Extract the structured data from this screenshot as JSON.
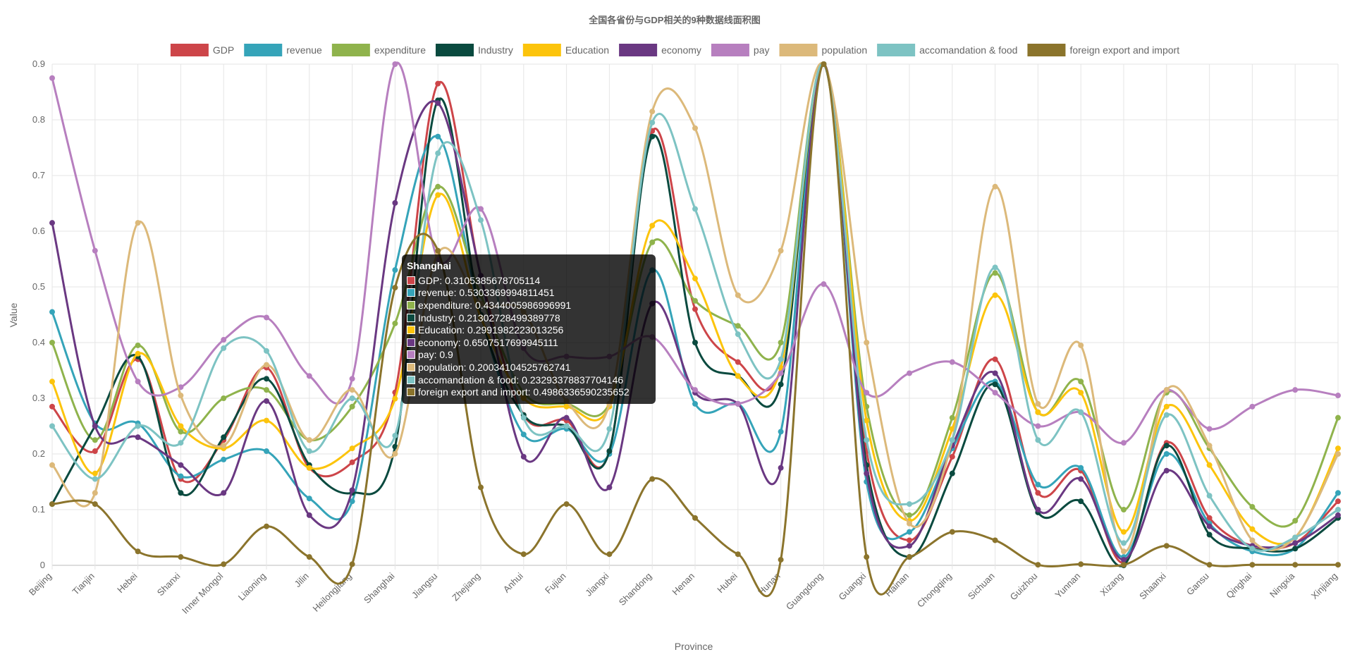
{
  "chart_data": {
    "type": "line",
    "title": "全国各省份与GDP相关的9种数据线面积图",
    "xlabel": "Province",
    "ylabel": "Value",
    "ylim": [
      0,
      0.9
    ],
    "yticks": [
      0,
      0.1,
      0.2,
      0.3,
      0.4,
      0.5,
      0.6,
      0.7,
      0.8,
      0.9
    ],
    "grid": true,
    "legend_position": "top",
    "categories": [
      "Beijing",
      "Tianjin",
      "Hebei",
      "Shanxi",
      "Inner Mongol",
      "Liaoning",
      "Jilin",
      "Heilongjiang",
      "Shanghai",
      "Jiangsu",
      "Zhejiang",
      "Anhui",
      "Fujian",
      "Jiangxi",
      "Shandong",
      "Henan",
      "Hubei",
      "Hunan",
      "Guangdong",
      "Guangxi",
      "Hainan",
      "Chongqing",
      "Sichuan",
      "Guizhou",
      "Yunnan",
      "Xizang",
      "Shaanxi",
      "Gansu",
      "Qinghai",
      "Ningxia",
      "Xinjiang"
    ],
    "series": [
      {
        "name": "GDP",
        "color": "#cd4549",
        "values": [
          0.285,
          0.205,
          0.37,
          0.155,
          0.225,
          0.355,
          0.175,
          0.185,
          0.3105385678705114,
          0.865,
          0.52,
          0.27,
          0.26,
          0.205,
          0.78,
          0.46,
          0.365,
          0.355,
          0.9,
          0.205,
          0.045,
          0.195,
          0.37,
          0.13,
          0.17,
          0.005,
          0.22,
          0.085,
          0.035,
          0.04,
          0.115
        ]
      },
      {
        "name": "revenue",
        "color": "#35a4b9",
        "values": [
          0.455,
          0.255,
          0.255,
          0.16,
          0.19,
          0.205,
          0.12,
          0.115,
          0.5303369994811451,
          0.77,
          0.45,
          0.235,
          0.245,
          0.2,
          0.53,
          0.29,
          0.29,
          0.24,
          0.9,
          0.15,
          0.06,
          0.21,
          0.33,
          0.145,
          0.175,
          0.015,
          0.2,
          0.075,
          0.025,
          0.03,
          0.13
        ]
      },
      {
        "name": "expenditure",
        "color": "#8fb34c",
        "values": [
          0.4,
          0.225,
          0.395,
          0.24,
          0.3,
          0.315,
          0.225,
          0.285,
          0.4344005986996991,
          0.68,
          0.485,
          0.31,
          0.29,
          0.29,
          0.58,
          0.475,
          0.43,
          0.4,
          0.9,
          0.285,
          0.09,
          0.265,
          0.525,
          0.275,
          0.33,
          0.1,
          0.31,
          0.21,
          0.105,
          0.08,
          0.265
        ]
      },
      {
        "name": "Industry",
        "color": "#0a4a3f",
        "values": [
          0.11,
          0.25,
          0.375,
          0.13,
          0.23,
          0.335,
          0.18,
          0.13,
          0.21302728499389778,
          0.835,
          0.45,
          0.27,
          0.25,
          0.205,
          0.77,
          0.4,
          0.34,
          0.325,
          0.9,
          0.18,
          0.015,
          0.165,
          0.325,
          0.095,
          0.115,
          0.0,
          0.215,
          0.055,
          0.03,
          0.03,
          0.085
        ]
      },
      {
        "name": "Education",
        "color": "#fcc40c",
        "values": [
          0.33,
          0.165,
          0.38,
          0.25,
          0.21,
          0.26,
          0.175,
          0.21,
          0.2991982223013256,
          0.665,
          0.445,
          0.3,
          0.285,
          0.285,
          0.61,
          0.515,
          0.34,
          0.355,
          0.9,
          0.26,
          0.08,
          0.245,
          0.485,
          0.275,
          0.31,
          0.06,
          0.285,
          0.18,
          0.065,
          0.05,
          0.21
        ]
      },
      {
        "name": "economy",
        "color": "#6a3882",
        "values": [
          0.615,
          0.25,
          0.23,
          0.18,
          0.13,
          0.295,
          0.09,
          0.135,
          0.6507517699945111,
          0.83,
          0.52,
          0.195,
          0.265,
          0.14,
          0.47,
          0.31,
          0.29,
          0.175,
          0.9,
          0.165,
          0.035,
          0.215,
          0.345,
          0.1,
          0.155,
          0.01,
          0.17,
          0.07,
          0.035,
          0.04,
          0.09
        ]
      },
      {
        "name": "pay",
        "color": "#b77fbf",
        "values": [
          0.875,
          0.565,
          0.33,
          0.32,
          0.405,
          0.445,
          0.34,
          0.335,
          0.9,
          0.55,
          0.64,
          0.39,
          0.375,
          0.375,
          0.41,
          0.315,
          0.29,
          0.345,
          0.505,
          0.31,
          0.345,
          0.365,
          0.31,
          0.25,
          0.275,
          0.22,
          0.315,
          0.245,
          0.285,
          0.315,
          0.305
        ]
      },
      {
        "name": "population",
        "color": "#dcb97a",
        "values": [
          0.18,
          0.13,
          0.615,
          0.305,
          0.215,
          0.36,
          0.225,
          0.315,
          0.20034104525762741,
          0.56,
          0.47,
          0.455,
          0.295,
          0.29,
          0.815,
          0.785,
          0.485,
          0.565,
          0.9,
          0.4,
          0.075,
          0.225,
          0.68,
          0.29,
          0.395,
          0.025,
          0.315,
          0.215,
          0.045,
          0.05,
          0.2
        ]
      },
      {
        "name": "accomandation & food",
        "color": "#7dc3c3",
        "values": [
          0.25,
          0.155,
          0.25,
          0.22,
          0.39,
          0.385,
          0.205,
          0.3,
          0.23293378837704146,
          0.74,
          0.62,
          0.265,
          0.25,
          0.245,
          0.795,
          0.64,
          0.415,
          0.37,
          0.9,
          0.225,
          0.11,
          0.225,
          0.535,
          0.225,
          0.275,
          0.04,
          0.27,
          0.125,
          0.03,
          0.05,
          0.1
        ]
      },
      {
        "name": "foreign export and import",
        "color": "#8b742c",
        "values": [
          0.11,
          0.11,
          0.025,
          0.015,
          0.002,
          0.07,
          0.015,
          0.002,
          0.4986336590235652,
          0.565,
          0.14,
          0.02,
          0.11,
          0.02,
          0.155,
          0.085,
          0.02,
          0.01,
          0.9,
          0.015,
          0.015,
          0.06,
          0.045,
          0.001,
          0.002,
          0.001,
          0.035,
          0.001,
          0.001,
          0.001,
          0.001
        ]
      }
    ]
  },
  "tooltip": {
    "title": "Shanghai",
    "rows": [
      {
        "label": "GDP: 0.3105385678705114",
        "color": "#cd4549"
      },
      {
        "label": "revenue: 0.5303369994811451",
        "color": "#35a4b9"
      },
      {
        "label": "expenditure: 0.4344005986996991​6",
        "color": "#8fb34c"
      },
      {
        "label": "Industry: 0.21302728499389778",
        "color": "#0a4a3f"
      },
      {
        "label": "Education: 0.2991982223013256",
        "color": "#fcc40c"
      },
      {
        "label": "economy: 0.6507517699945111",
        "color": "#6a3882"
      },
      {
        "label": "pay: 0.9",
        "color": "#b77fbf"
      },
      {
        "label": "population: 0.20034104525762741",
        "color": "#dcb97a"
      },
      {
        "label": "accomandation & food: 0.23293378837704146",
        "color": "#7dc3c3"
      },
      {
        "label": "foreign export and import: 0.4986336590235652​7",
        "color": "#8b742c"
      }
    ]
  }
}
